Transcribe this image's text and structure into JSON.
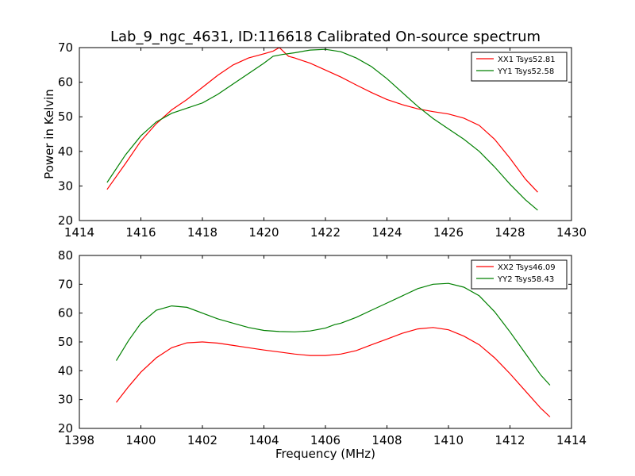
{
  "chart_data": [
    {
      "type": "line",
      "title": "Lab_9_ngc_4631, ID:116618 Calibrated On-source spectrum",
      "xlabel": "",
      "ylabel": "Power in Kelvin",
      "xlim": [
        1414,
        1430
      ],
      "ylim": [
        20,
        70
      ],
      "xticks": [
        "1414",
        "1416",
        "1418",
        "1420",
        "1422",
        "1424",
        "1426",
        "1428",
        "1430"
      ],
      "yticks": [
        "20",
        "30",
        "40",
        "50",
        "60",
        "70"
      ],
      "legend": "top-right",
      "series": [
        {
          "name": "XX1 Tsys52.81",
          "color": "#ff0000",
          "x": [
            1414.9,
            1415.5,
            1416.0,
            1416.5,
            1417.0,
            1417.5,
            1418.0,
            1418.5,
            1419.0,
            1419.5,
            1420.0,
            1420.3,
            1420.5,
            1420.8,
            1421.0,
            1421.5,
            1422.0,
            1422.5,
            1423.0,
            1423.5,
            1424.0,
            1424.5,
            1425.0,
            1425.5,
            1426.0,
            1426.5,
            1427.0,
            1427.5,
            1428.0,
            1428.5,
            1428.9
          ],
          "y": [
            29.0,
            36.5,
            43.0,
            48.0,
            52.0,
            55.0,
            58.5,
            62.0,
            65.0,
            67.0,
            68.2,
            69.0,
            70.0,
            67.5,
            67.0,
            65.5,
            63.5,
            61.5,
            59.2,
            57.0,
            55.0,
            53.5,
            52.3,
            51.5,
            50.8,
            49.6,
            47.5,
            43.5,
            38.0,
            32.0,
            28.2
          ]
        },
        {
          "name": "YY1 Tsys52.58",
          "color": "#008000",
          "x": [
            1414.9,
            1415.5,
            1416.0,
            1416.5,
            1417.0,
            1417.5,
            1418.0,
            1418.5,
            1419.0,
            1419.5,
            1420.0,
            1420.3,
            1420.6,
            1421.0,
            1421.5,
            1422.0,
            1422.5,
            1423.0,
            1423.5,
            1424.0,
            1424.5,
            1425.0,
            1425.5,
            1426.0,
            1426.5,
            1427.0,
            1427.5,
            1428.0,
            1428.5,
            1428.9
          ],
          "y": [
            31.0,
            39.0,
            44.5,
            48.5,
            51.0,
            52.5,
            54.0,
            56.5,
            59.5,
            62.5,
            65.5,
            67.5,
            68.0,
            68.5,
            69.3,
            69.5,
            68.8,
            67.0,
            64.5,
            61.0,
            57.0,
            53.0,
            49.5,
            46.5,
            43.5,
            40.0,
            35.5,
            30.5,
            26.0,
            23.0
          ]
        }
      ]
    },
    {
      "type": "line",
      "title": "",
      "xlabel": "Frequency (MHz)",
      "ylabel": "",
      "xlim": [
        1398,
        1414
      ],
      "ylim": [
        20,
        80
      ],
      "xticks": [
        "1398",
        "1400",
        "1402",
        "1404",
        "1406",
        "1408",
        "1410",
        "1412",
        "1414"
      ],
      "yticks": [
        "20",
        "30",
        "40",
        "50",
        "60",
        "70",
        "80"
      ],
      "legend": "top-right",
      "series": [
        {
          "name": "XX2 Tsys46.09",
          "color": "#ff0000",
          "x": [
            1399.2,
            1399.6,
            1400.0,
            1400.5,
            1401.0,
            1401.5,
            1402.0,
            1402.5,
            1403.0,
            1403.5,
            1404.0,
            1404.5,
            1405.0,
            1405.5,
            1406.0,
            1406.5,
            1407.0,
            1407.5,
            1408.0,
            1408.5,
            1409.0,
            1409.5,
            1410.0,
            1410.5,
            1411.0,
            1411.5,
            1412.0,
            1412.5,
            1413.0,
            1413.3
          ],
          "y": [
            29.0,
            34.5,
            39.5,
            44.5,
            48.0,
            49.7,
            50.0,
            49.6,
            48.8,
            48.0,
            47.2,
            46.5,
            45.8,
            45.3,
            45.3,
            45.8,
            47.0,
            49.0,
            51.0,
            53.0,
            54.5,
            55.0,
            54.2,
            52.0,
            49.0,
            44.5,
            39.0,
            33.0,
            27.0,
            24.0
          ]
        },
        {
          "name": "YY2 Tsys58.43",
          "color": "#008000",
          "x": [
            1399.2,
            1399.6,
            1400.0,
            1400.5,
            1401.0,
            1401.5,
            1402.0,
            1402.5,
            1403.0,
            1403.5,
            1404.0,
            1404.5,
            1405.0,
            1405.5,
            1406.0,
            1406.3,
            1406.5,
            1407.0,
            1407.5,
            1408.0,
            1408.5,
            1409.0,
            1409.5,
            1410.0,
            1410.5,
            1411.0,
            1411.5,
            1412.0,
            1412.5,
            1413.0,
            1413.3
          ],
          "y": [
            43.5,
            50.5,
            56.5,
            61.0,
            62.5,
            62.0,
            60.0,
            58.0,
            56.5,
            55.0,
            54.0,
            53.6,
            53.5,
            53.8,
            54.8,
            56.0,
            56.5,
            58.5,
            61.0,
            63.5,
            66.0,
            68.5,
            70.0,
            70.3,
            69.0,
            66.0,
            60.5,
            53.5,
            46.0,
            38.5,
            35.0
          ]
        }
      ]
    }
  ]
}
